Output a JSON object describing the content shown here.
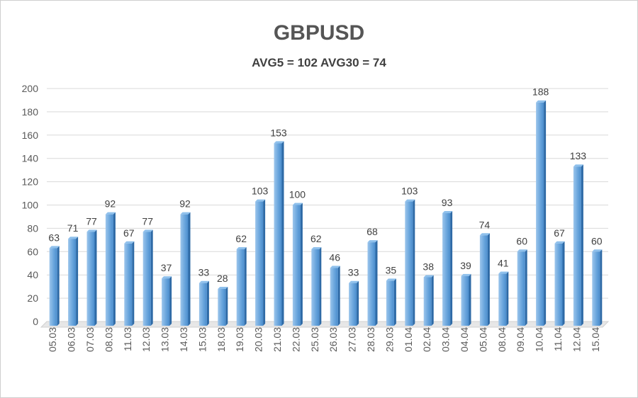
{
  "chart_data": {
    "type": "bar",
    "title": "GBPUSD",
    "subtitle": "AVG5 = 102 AVG30 = 74",
    "categories": [
      "05.03",
      "06.03",
      "07.03",
      "08.03",
      "11.03",
      "12.03",
      "13.03",
      "14.03",
      "15.03",
      "18.03",
      "19.03",
      "20.03",
      "21.03",
      "22.03",
      "25.03",
      "26.03",
      "27.03",
      "28.03",
      "29.03",
      "01.04",
      "02.04",
      "03.04",
      "04.04",
      "05.04",
      "08.04",
      "09.04",
      "10.04",
      "11.04",
      "12.04",
      "15.04"
    ],
    "values": [
      63,
      71,
      77,
      92,
      67,
      77,
      37,
      92,
      33,
      28,
      62,
      103,
      153,
      100,
      62,
      46,
      33,
      68,
      35,
      103,
      38,
      93,
      39,
      74,
      41,
      60,
      188,
      67,
      133,
      60
    ],
    "ylim": [
      0,
      200
    ],
    "yticks": [
      "0",
      "20",
      "40",
      "60",
      "80",
      "100",
      "120",
      "140",
      "160",
      "180",
      "200"
    ],
    "grid": true,
    "data_labels": true,
    "bar_color": "#5b9bd5",
    "bar_side_color": "#2e6aa6"
  }
}
